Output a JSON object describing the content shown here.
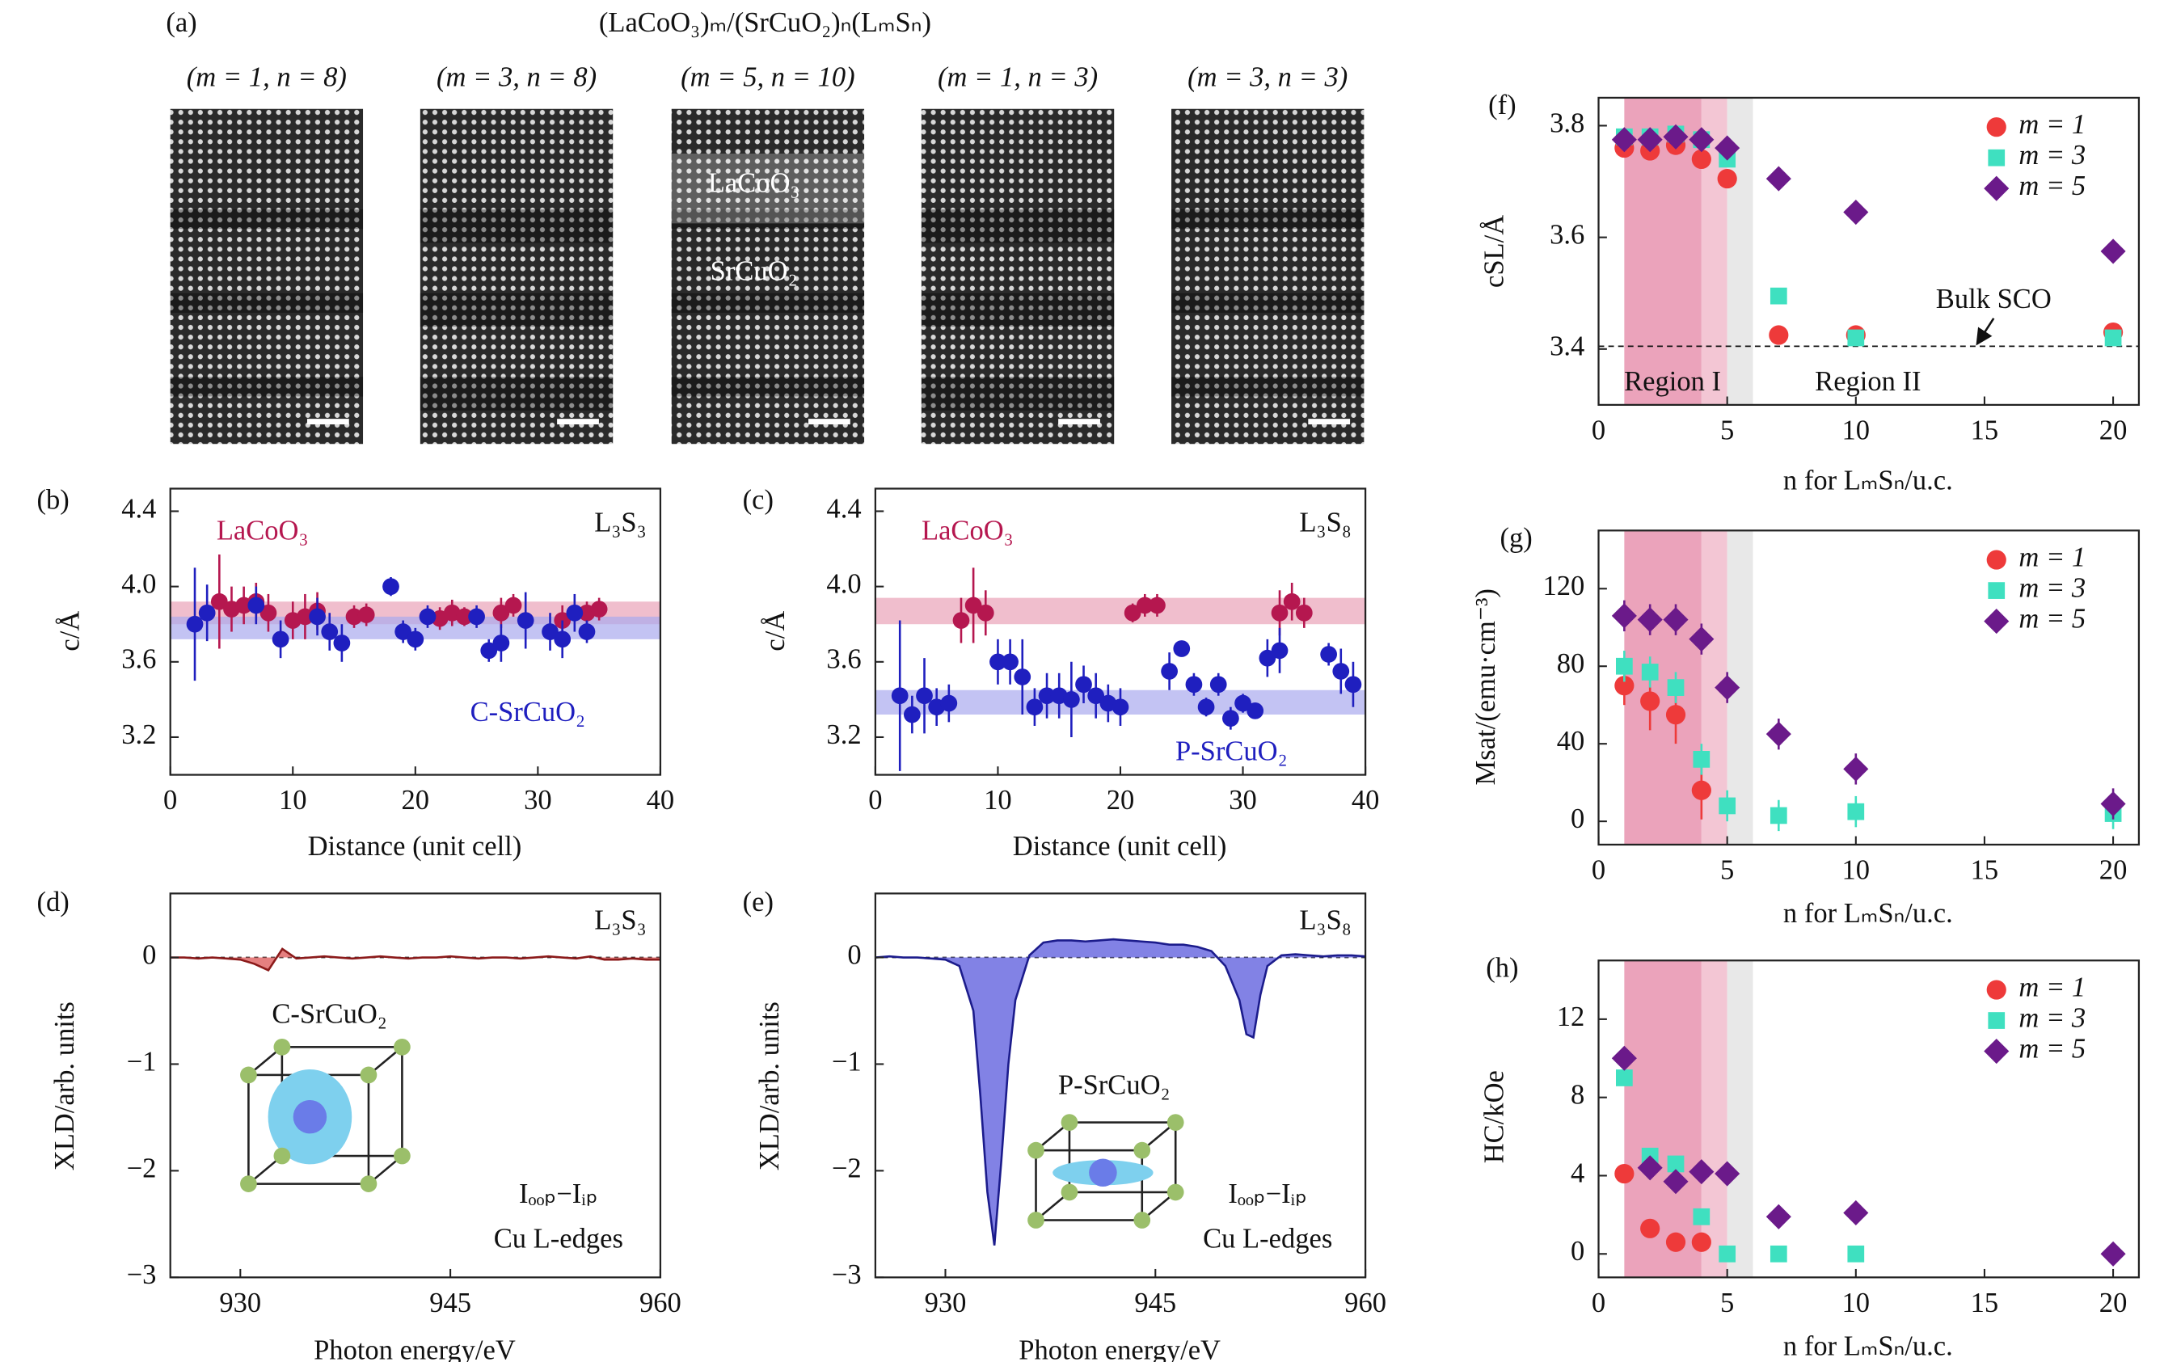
{
  "chart_data": [
    {
      "type": "image",
      "panel": "(a)",
      "title": "(LaCoO₃)ₘ/(SrCuO₂)ₙ(LₘSₙ)",
      "labels": [
        "(m = 1, n = 8)",
        "(m = 3, n = 8)",
        "(m = 5, n = 10)",
        "(m = 1, n = 3)",
        "(m = 3, n = 3)"
      ],
      "annotations": [
        "LaCoO₃",
        "SrCuO₂"
      ]
    },
    {
      "type": "errorbar",
      "panel": "(b)",
      "title": "L₃S₃",
      "xlabel": "Distance (unit cell)",
      "ylabel": "c/Å",
      "xlim": [
        0,
        40
      ],
      "ylim": [
        3.0,
        4.52
      ],
      "xticks": [
        0,
        10,
        20,
        30,
        40
      ],
      "yticks": [
        3.2,
        3.6,
        {
          "value": 4.0,
          "label": "4.0"
        },
        4.4
      ],
      "bands": [
        {
          "color": "#e9a3b8",
          "range": [
            3.8,
            3.92
          ]
        },
        {
          "color": "#a9a9ee",
          "range": [
            3.72,
            3.84
          ]
        }
      ],
      "series": [
        {
          "name": "LaCoO₃",
          "color": "#b5174f",
          "x": [
            4,
            5,
            6,
            7,
            8,
            10,
            11,
            12,
            15,
            16,
            22,
            23,
            24,
            27,
            28,
            32,
            34,
            35
          ],
          "values": [
            3.92,
            3.88,
            3.9,
            3.92,
            3.86,
            3.82,
            3.84,
            3.87,
            3.84,
            3.85,
            3.83,
            3.86,
            3.84,
            3.86,
            3.9,
            3.82,
            3.86,
            3.88
          ],
          "errors": [
            0.25,
            0.12,
            0.1,
            0.1,
            0.1,
            0.1,
            0.12,
            0.1,
            0.06,
            0.06,
            0.06,
            0.07,
            0.05,
            0.08,
            0.06,
            0.08,
            0.06,
            0.06
          ]
        },
        {
          "name": "C-SrCuO₂",
          "color": "#1f1fbf",
          "x": [
            2,
            3,
            7,
            9,
            12,
            13,
            14,
            18,
            19,
            20,
            21,
            25,
            26,
            27,
            29,
            31,
            32,
            33,
            34
          ],
          "values": [
            3.8,
            3.86,
            3.9,
            3.72,
            3.84,
            3.76,
            3.7,
            4.0,
            3.76,
            3.72,
            3.84,
            3.84,
            3.66,
            3.7,
            3.82,
            3.76,
            3.72,
            3.86,
            3.76
          ],
          "errors": [
            0.3,
            0.15,
            0.1,
            0.1,
            0.1,
            0.1,
            0.1,
            0.05,
            0.06,
            0.06,
            0.06,
            0.06,
            0.06,
            0.1,
            0.15,
            0.1,
            0.1,
            0.1,
            0.06
          ]
        }
      ]
    },
    {
      "type": "errorbar",
      "panel": "(c)",
      "title": "L₃S₈",
      "xlabel": "Distance (unit cell)",
      "ylabel": "c/Å",
      "xlim": [
        0,
        40
      ],
      "ylim": [
        3.0,
        4.52
      ],
      "xticks": [
        0,
        10,
        20,
        30,
        40
      ],
      "yticks": [
        3.2,
        3.6,
        {
          "value": 4.0,
          "label": "4.0"
        },
        4.4
      ],
      "bands": [
        {
          "color": "#e9a3b8",
          "range": [
            3.8,
            3.94
          ]
        },
        {
          "color": "#a9a9ee",
          "range": [
            3.32,
            3.45
          ]
        }
      ],
      "series": [
        {
          "name": "LaCoO₃",
          "color": "#b5174f",
          "x": [
            7,
            8,
            9,
            21,
            22,
            23,
            33,
            34,
            35
          ],
          "values": [
            3.82,
            3.9,
            3.86,
            3.86,
            3.9,
            3.9,
            3.86,
            3.92,
            3.86
          ],
          "errors": [
            0.12,
            0.2,
            0.12,
            0.05,
            0.06,
            0.06,
            0.12,
            0.1,
            0.08
          ]
        },
        {
          "name": "P-SrCuO₂",
          "color": "#1f1fbf",
          "x": [
            2,
            3,
            4,
            5,
            6,
            10,
            11,
            12,
            13,
            14,
            15,
            16,
            17,
            18,
            19,
            20,
            24,
            25,
            26,
            27,
            28,
            29,
            30,
            31,
            32,
            33,
            37,
            38,
            39
          ],
          "values": [
            3.42,
            3.32,
            3.42,
            3.36,
            3.38,
            3.6,
            3.6,
            3.52,
            3.36,
            3.42,
            3.42,
            3.4,
            3.48,
            3.42,
            3.38,
            3.36,
            3.55,
            3.67,
            3.48,
            3.36,
            3.48,
            3.3,
            3.38,
            3.34,
            3.62,
            3.66,
            3.64,
            3.55,
            3.48
          ],
          "errors": [
            0.4,
            0.1,
            0.2,
            0.1,
            0.1,
            0.12,
            0.12,
            0.2,
            0.1,
            0.12,
            0.12,
            0.2,
            0.1,
            0.12,
            0.1,
            0.1,
            0.1,
            0.03,
            0.06,
            0.05,
            0.06,
            0.06,
            0.05,
            0.04,
            0.1,
            0.12,
            0.06,
            0.12,
            0.12
          ]
        }
      ]
    },
    {
      "type": "area",
      "panel": "(d)",
      "title": "L₃S₃",
      "xlabel": "Photon energy/eV",
      "ylabel": "XLD/arb. units",
      "xlim": [
        925,
        960
      ],
      "ylim": [
        -3,
        0.6
      ],
      "xticks": [
        930,
        945,
        960
      ],
      "yticks": [
        0,
        {
          "value": -1,
          "label": "−1"
        },
        {
          "value": -2,
          "label": "−2"
        },
        {
          "value": -3,
          "label": "−3"
        }
      ],
      "reference": 0,
      "color": "#e06a6a",
      "line_color": "#8b1a1a",
      "annotations": [
        "C-SrCuO₂",
        "Iₒₒₚ−Iᵢₚ",
        "Cu L-edges"
      ],
      "x": [
        925,
        926,
        927,
        928,
        929,
        930,
        931,
        932,
        933,
        934,
        935,
        936,
        937,
        938,
        939,
        940,
        941,
        942,
        943,
        944,
        945,
        946,
        947,
        948,
        949,
        950,
        951,
        952,
        953,
        954,
        955,
        956,
        957,
        958,
        959,
        960
      ],
      "values": [
        0,
        0,
        -0.01,
        0,
        -0.01,
        -0.02,
        -0.06,
        -0.12,
        0.08,
        -0.01,
        0,
        0.01,
        0,
        -0.01,
        0,
        0.01,
        0,
        -0.01,
        0,
        0,
        0.01,
        0,
        -0.01,
        0,
        0,
        -0.01,
        0,
        0.01,
        0,
        -0.01,
        0.01,
        -0.02,
        -0.02,
        -0.01,
        -0.02,
        -0.02
      ]
    },
    {
      "type": "area",
      "panel": "(e)",
      "title": "L₃S₈",
      "xlabel": "Photon energy/eV",
      "ylabel": "XLD/arb. units",
      "xlim": [
        925,
        960
      ],
      "ylim": [
        -3,
        0.6
      ],
      "xticks": [
        930,
        945,
        960
      ],
      "yticks": [
        0,
        {
          "value": -1,
          "label": "−1"
        },
        {
          "value": -2,
          "label": "−2"
        },
        {
          "value": -3,
          "label": "−3"
        }
      ],
      "reference": 0,
      "color": "#6c6ce0",
      "line_color": "#1c1c8c",
      "annotations": [
        "P-SrCuO₂",
        "Iₒₒₚ−Iᵢₚ",
        "Cu L-edges"
      ],
      "x": [
        925,
        926,
        927,
        928,
        929,
        930,
        931,
        932,
        932.5,
        933,
        933.5,
        934,
        934.5,
        935,
        936,
        937,
        938,
        939,
        940,
        941,
        942,
        943,
        944,
        945,
        946,
        947,
        948,
        949,
        950,
        951,
        951.5,
        952,
        952.5,
        953,
        954,
        955,
        956,
        957,
        958,
        959,
        960
      ],
      "values": [
        0,
        0.01,
        0,
        0,
        -0.01,
        -0.02,
        -0.08,
        -0.5,
        -1.3,
        -2.2,
        -2.7,
        -1.9,
        -1.0,
        -0.4,
        0.02,
        0.14,
        0.16,
        0.16,
        0.15,
        0.16,
        0.17,
        0.16,
        0.15,
        0.14,
        0.12,
        0.12,
        0.1,
        0.06,
        -0.08,
        -0.4,
        -0.72,
        -0.75,
        -0.35,
        -0.08,
        0.02,
        0.03,
        0.02,
        0.01,
        0.02,
        0.02,
        0.01
      ]
    },
    {
      "type": "scatter",
      "panel": "(f)",
      "xlabel": "n for LₘSₙ/u.c.",
      "ylabel": "cSL/Å",
      "xlim": [
        0,
        21
      ],
      "ylim": [
        3.3,
        3.85
      ],
      "xticks": [
        0,
        5,
        10,
        15,
        20
      ],
      "yticks": [
        3.4,
        3.6,
        3.8
      ],
      "legend": "upper right",
      "reference": 3.405,
      "annotations": [
        "Bulk SCO",
        "Region I",
        "Region II"
      ],
      "shaded_spans": [
        {
          "range": [
            1,
            4
          ],
          "color": "#eba3bb"
        },
        {
          "range": [
            4,
            5
          ],
          "color": "#f3c6d4"
        },
        {
          "range": [
            5,
            6
          ],
          "color": "#e8e8e8"
        }
      ],
      "series": [
        {
          "name": "m = 1",
          "color": "#ee3a3a",
          "marker": "circle",
          "x": [
            1,
            2,
            3,
            4,
            5,
            7,
            10,
            20
          ],
          "values": [
            3.76,
            3.755,
            3.765,
            3.74,
            3.705,
            3.425,
            3.425,
            3.43
          ]
        },
        {
          "name": "m = 3",
          "color": "#3fe0c0",
          "marker": "square",
          "x": [
            1,
            2,
            3,
            4,
            5,
            7,
            10,
            20
          ],
          "values": [
            3.78,
            3.78,
            3.785,
            3.775,
            3.74,
            3.495,
            3.42,
            3.42
          ]
        },
        {
          "name": "m = 5",
          "color": "#6b1a8a",
          "marker": "diamond",
          "x": [
            1,
            2,
            3,
            4,
            5,
            7,
            10,
            20
          ],
          "values": [
            3.775,
            3.775,
            3.78,
            3.775,
            3.76,
            3.705,
            3.645,
            3.575
          ]
        }
      ]
    },
    {
      "type": "scatter",
      "panel": "(g)",
      "xlabel": "n for LₘSₙ/u.c.",
      "ylabel": "Msat/(emu·cm⁻³)",
      "xlim": [
        0,
        21
      ],
      "ylim": [
        -12,
        150
      ],
      "xticks": [
        0,
        5,
        10,
        15,
        20
      ],
      "yticks": [
        0,
        40,
        80,
        120
      ],
      "legend": "upper right",
      "shaded_spans": [
        {
          "range": [
            1,
            4
          ],
          "color": "#eba3bb"
        },
        {
          "range": [
            4,
            5
          ],
          "color": "#f3c6d4"
        },
        {
          "range": [
            5,
            6
          ],
          "color": "#e8e8e8"
        }
      ],
      "series": [
        {
          "name": "m = 1",
          "color": "#ee3a3a",
          "marker": "circle",
          "x": [
            1,
            2,
            3,
            4
          ],
          "values": [
            70,
            62,
            55,
            16
          ],
          "errors": [
            10,
            15,
            15,
            15
          ]
        },
        {
          "name": "m = 3",
          "color": "#3fe0c0",
          "marker": "square",
          "x": [
            1,
            2,
            3,
            4,
            5,
            7,
            10,
            20
          ],
          "values": [
            80,
            77,
            69,
            32,
            8,
            3,
            5,
            4
          ],
          "errors": [
            8,
            8,
            8,
            8,
            8,
            8,
            8,
            8
          ]
        },
        {
          "name": "m = 5",
          "color": "#6b1a8a",
          "marker": "diamond",
          "x": [
            1,
            2,
            3,
            4,
            5,
            7,
            10,
            20
          ],
          "values": [
            106,
            104,
            104,
            94,
            69,
            45,
            27,
            9
          ],
          "errors": [
            8,
            8,
            8,
            8,
            8,
            8,
            8,
            8
          ]
        }
      ]
    },
    {
      "type": "scatter",
      "panel": "(h)",
      "xlabel": "n for LₘSₙ/u.c.",
      "ylabel": "HC/kOe",
      "xlim": [
        0,
        21
      ],
      "ylim": [
        -1.2,
        15
      ],
      "xticks": [
        0,
        5,
        10,
        15,
        20
      ],
      "yticks": [
        0,
        4,
        8,
        12
      ],
      "legend": "upper right",
      "shaded_spans": [
        {
          "range": [
            1,
            4
          ],
          "color": "#eba3bb"
        },
        {
          "range": [
            4,
            5
          ],
          "color": "#f3c6d4"
        },
        {
          "range": [
            5,
            6
          ],
          "color": "#e8e8e8"
        }
      ],
      "series": [
        {
          "name": "m = 1",
          "color": "#ee3a3a",
          "marker": "circle",
          "x": [
            1,
            2,
            3,
            4
          ],
          "values": [
            4.1,
            1.3,
            0.6,
            0.6
          ]
        },
        {
          "name": "m = 3",
          "color": "#3fe0c0",
          "marker": "square",
          "x": [
            1,
            2,
            3,
            4,
            5,
            7,
            10
          ],
          "values": [
            9,
            5,
            4.6,
            1.9,
            0,
            0,
            0
          ]
        },
        {
          "name": "m = 5",
          "color": "#6b1a8a",
          "marker": "diamond",
          "x": [
            1,
            2,
            3,
            4,
            5,
            7,
            10,
            20
          ],
          "values": [
            10,
            4.4,
            3.7,
            4.2,
            4.1,
            1.9,
            2.1,
            0
          ]
        }
      ]
    }
  ]
}
